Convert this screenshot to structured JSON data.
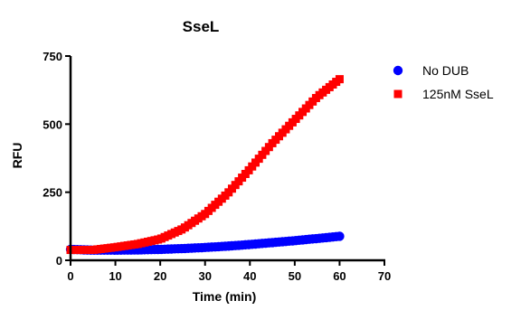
{
  "chart_data": {
    "type": "scatter",
    "title": "SseL",
    "xlabel": "Time (min)",
    "ylabel": "RFU",
    "xlim": [
      0,
      70
    ],
    "ylim": [
      0,
      750
    ],
    "xticks": [
      0,
      10,
      20,
      30,
      40,
      50,
      60,
      70
    ],
    "yticks": [
      0,
      250,
      500,
      750
    ],
    "grid": false,
    "legend_position": "top-right",
    "series": [
      {
        "name": "No DUB",
        "marker": "circle",
        "color": "#0000ff",
        "x": [
          0,
          5,
          10,
          15,
          20,
          25,
          30,
          35,
          40,
          45,
          50,
          55,
          60
        ],
        "y": [
          40,
          37,
          37,
          38,
          40,
          43,
          47,
          52,
          58,
          65,
          72,
          80,
          88
        ]
      },
      {
        "name": "125nM SseL",
        "marker": "square",
        "color": "#ff0000",
        "x": [
          0,
          5,
          10,
          15,
          20,
          25,
          30,
          35,
          40,
          45,
          50,
          55,
          60
        ],
        "y": [
          38,
          38,
          48,
          60,
          78,
          115,
          170,
          245,
          335,
          430,
          515,
          600,
          665
        ]
      }
    ]
  }
}
